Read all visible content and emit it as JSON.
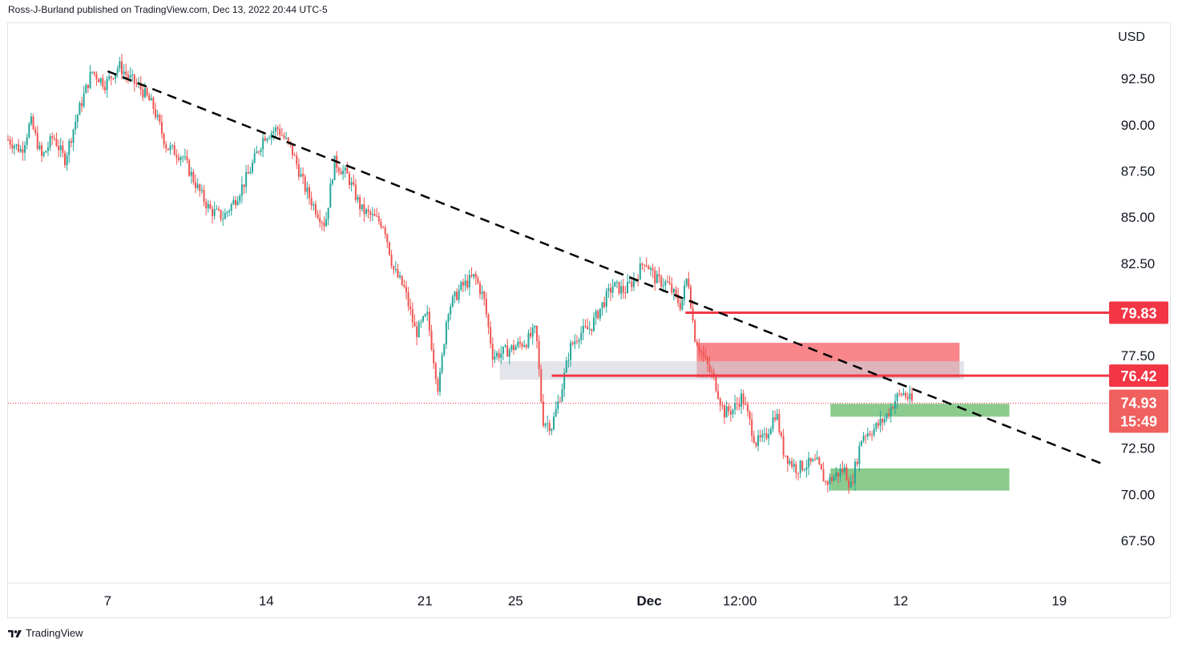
{
  "header": {
    "published": "Ross-J-Burland published on TradingView.com, Dec 13, 2022 20:44 UTC-5"
  },
  "footer": {
    "brand": "TradingView",
    "logo_icon": "tradingview-logo-icon"
  },
  "colors": {
    "up": "#26a69a",
    "down": "#ef5350",
    "level": "#f23645",
    "red_zone": "#f77c80",
    "green_zone": "#81c784",
    "gray_zone": "#d1d4dc",
    "trendline": "#000000",
    "current_line": "#f23645"
  },
  "chart_data": {
    "type": "candlestick",
    "currency": "USD",
    "ylim": [
      65.2,
      95.5
    ],
    "y_ticks": [
      92.5,
      90.0,
      87.5,
      85.0,
      82.5,
      77.5,
      72.5,
      70.0,
      67.5
    ],
    "y_tick_labels": [
      "92.50",
      "90.00",
      "87.50",
      "85.00",
      "82.50",
      "77.50",
      "72.50",
      "70.00",
      "67.50"
    ],
    "x_ticks": [
      {
        "label": "7",
        "day": 7
      },
      {
        "label": "14",
        "day": 14
      },
      {
        "label": "21",
        "day": 21
      },
      {
        "label": "25",
        "day": 25
      },
      {
        "label": "Dec",
        "day": 30.9,
        "bold": true
      },
      {
        "label": "12:00",
        "day": 34.9
      },
      {
        "label": "12",
        "day": 42
      },
      {
        "label": "19",
        "day": 49
      }
    ],
    "xlim": [
      2.6,
      51.2
    ],
    "series_path": [
      [
        2.6,
        89.2
      ],
      [
        3.2,
        88.6
      ],
      [
        3.6,
        90.2
      ],
      [
        4.1,
        88.2
      ],
      [
        4.6,
        89.4
      ],
      [
        5.1,
        88.1
      ],
      [
        5.6,
        90.3
      ],
      [
        6.3,
        92.9
      ],
      [
        6.9,
        92.2
      ],
      [
        7.5,
        93.2
      ],
      [
        7.9,
        92.6
      ],
      [
        8.5,
        91.9
      ],
      [
        9.0,
        91.0
      ],
      [
        9.6,
        88.8
      ],
      [
        10.3,
        88.3
      ],
      [
        11.0,
        86.5
      ],
      [
        11.5,
        85.4
      ],
      [
        12.1,
        85.0
      ],
      [
        12.6,
        85.9
      ],
      [
        13.2,
        87.3
      ],
      [
        13.9,
        89.4
      ],
      [
        14.5,
        89.8
      ],
      [
        15.1,
        88.7
      ],
      [
        15.7,
        86.6
      ],
      [
        16.1,
        85.6
      ],
      [
        16.6,
        84.6
      ],
      [
        17.0,
        88.0
      ],
      [
        17.6,
        87.2
      ],
      [
        18.2,
        85.4
      ],
      [
        18.7,
        85.0
      ],
      [
        19.2,
        84.6
      ],
      [
        19.6,
        82.2
      ],
      [
        20.1,
        81.1
      ],
      [
        20.6,
        78.7
      ],
      [
        21.1,
        79.7
      ],
      [
        21.6,
        75.6
      ],
      [
        22.0,
        80.0
      ],
      [
        22.6,
        81.2
      ],
      [
        23.2,
        81.8
      ],
      [
        23.6,
        80.6
      ],
      [
        24.0,
        77.5
      ],
      [
        24.5,
        77.7
      ],
      [
        25.0,
        78.0
      ],
      [
        25.5,
        78.3
      ],
      [
        25.9,
        78.9
      ],
      [
        26.2,
        74.0
      ],
      [
        26.6,
        73.7
      ],
      [
        27.0,
        75.5
      ],
      [
        27.4,
        77.9
      ],
      [
        27.8,
        78.7
      ],
      [
        28.3,
        79.0
      ],
      [
        28.8,
        80.2
      ],
      [
        29.3,
        81.3
      ],
      [
        29.8,
        81.0
      ],
      [
        30.3,
        81.7
      ],
      [
        30.7,
        82.7
      ],
      [
        31.2,
        81.6
      ],
      [
        31.7,
        81.4
      ],
      [
        32.3,
        80.2
      ],
      [
        32.6,
        81.9
      ],
      [
        32.9,
        78.6
      ],
      [
        33.3,
        77.4
      ],
      [
        33.8,
        76.1
      ],
      [
        34.2,
        74.4
      ],
      [
        34.6,
        74.6
      ],
      [
        35.0,
        75.3
      ],
      [
        35.6,
        72.8
      ],
      [
        36.0,
        73.0
      ],
      [
        36.5,
        74.5
      ],
      [
        36.8,
        72.4
      ],
      [
        37.1,
        71.8
      ],
      [
        37.4,
        71.4
      ],
      [
        37.8,
        71.6
      ],
      [
        38.3,
        71.7
      ],
      [
        38.7,
        70.6
      ],
      [
        39.1,
        71.0
      ],
      [
        39.5,
        71.4
      ],
      [
        39.8,
        70.4
      ],
      [
        40.3,
        73.2
      ],
      [
        40.8,
        73.5
      ],
      [
        41.3,
        74.1
      ],
      [
        41.8,
        75.2
      ],
      [
        42.1,
        75.5
      ],
      [
        42.5,
        75.0
      ]
    ],
    "trendline": {
      "from": [
        7.0,
        92.9
      ],
      "to": [
        51.0,
        71.6
      ],
      "style": "dashed"
    },
    "levels": [
      {
        "value": 79.83,
        "label": "79.83",
        "from_day": 32.5
      },
      {
        "value": 76.42,
        "label": "76.42",
        "from_day": 26.6
      }
    ],
    "zones": [
      {
        "kind": "supply",
        "color": "red_zone",
        "from_day": 33.0,
        "to_day": 44.6,
        "low": 76.3,
        "high": 78.2
      },
      {
        "kind": "support",
        "color": "gray_zone",
        "from_day": 24.3,
        "to_day": 44.8,
        "low": 76.2,
        "high": 77.2
      },
      {
        "kind": "demand",
        "color": "green_zone",
        "from_day": 38.9,
        "to_day": 46.8,
        "low": 74.2,
        "high": 74.9
      },
      {
        "kind": "demand",
        "color": "green_zone",
        "from_day": 38.9,
        "to_day": 46.8,
        "low": 70.2,
        "high": 71.4
      }
    ],
    "current": {
      "value": 74.93,
      "label": "74.93",
      "countdown": "15:49"
    }
  }
}
